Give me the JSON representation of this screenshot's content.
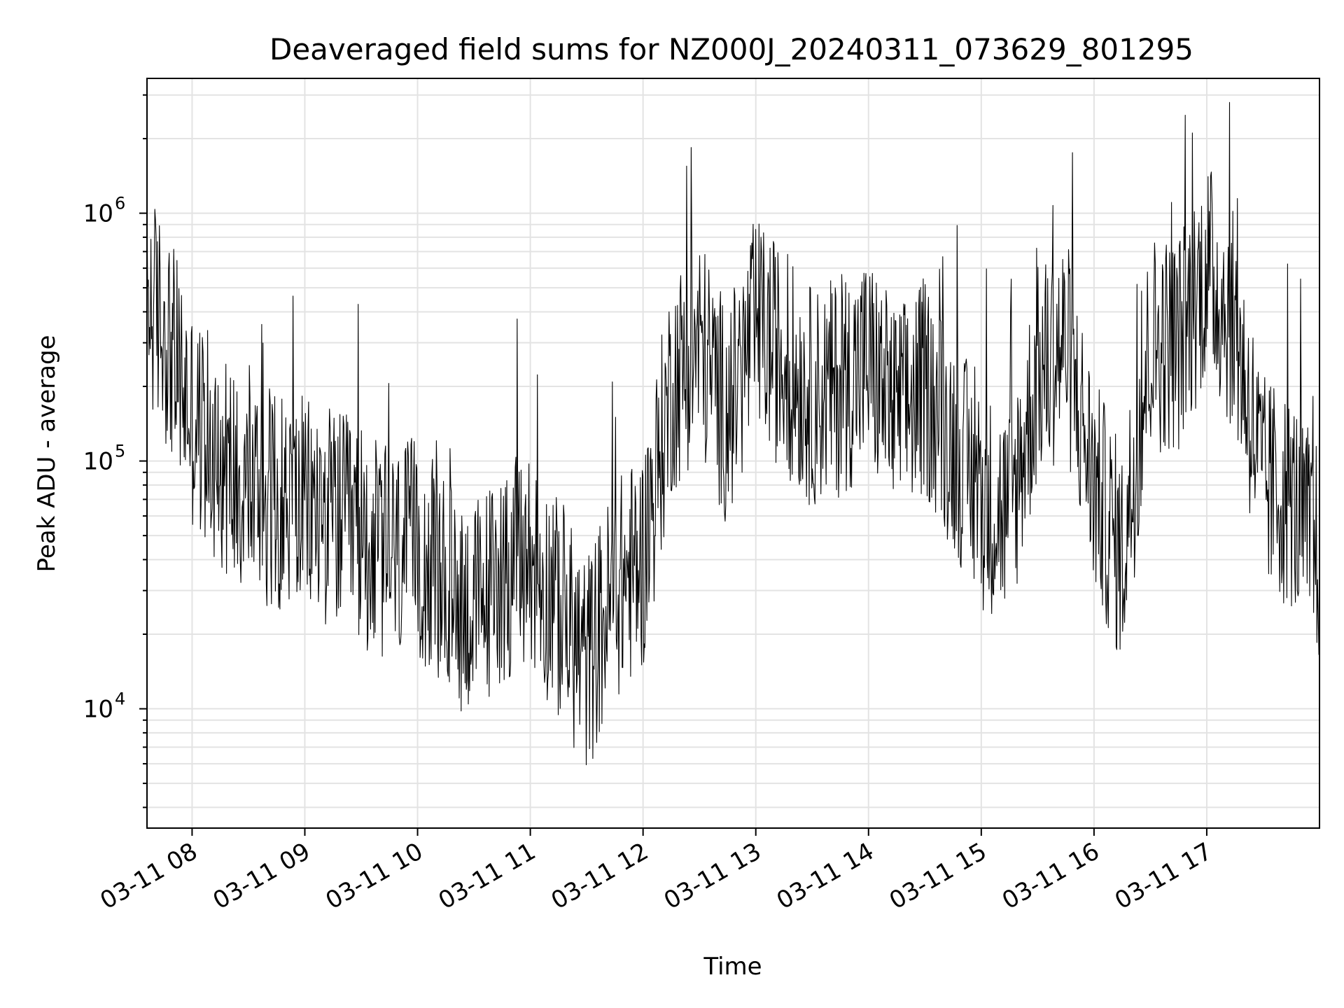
{
  "chart_data": {
    "type": "line",
    "title": "Deaveraged field sums for NZ000J_20240311_073629_801295",
    "xlabel": "Time",
    "ylabel": "Peak ADU - average",
    "yscale": "log",
    "ylim": [
      3300,
      3500000
    ],
    "xlim": [
      "2024-03-11 07:36",
      "2024-03-11 18:00"
    ],
    "grid": true,
    "x_ticks": [
      "03-11 08",
      "03-11 09",
      "03-11 10",
      "03-11 11",
      "03-11 12",
      "03-11 13",
      "03-11 14",
      "03-11 15",
      "03-11 16",
      "03-11 17"
    ],
    "y_ticks": [
      {
        "base": "10",
        "exp": "4",
        "value": 10000
      },
      {
        "base": "10",
        "exp": "5",
        "value": 100000
      },
      {
        "base": "10",
        "exp": "6",
        "value": 1000000
      }
    ],
    "series": [
      {
        "color": "#000000",
        "x": [
          "2024-03-11 07:36",
          "2024-03-11 07:45",
          "2024-03-11 08:00",
          "2024-03-11 08:15",
          "2024-03-11 08:30",
          "2024-03-11 08:45",
          "2024-03-11 09:00",
          "2024-03-11 09:15",
          "2024-03-11 09:30",
          "2024-03-11 09:45",
          "2024-03-11 10:00",
          "2024-03-11 10:15",
          "2024-03-11 10:30",
          "2024-03-11 10:45",
          "2024-03-11 11:00",
          "2024-03-11 11:15",
          "2024-03-11 11:30",
          "2024-03-11 11:45",
          "2024-03-11 12:00",
          "2024-03-11 12:15",
          "2024-03-11 12:30",
          "2024-03-11 12:45",
          "2024-03-11 13:00",
          "2024-03-11 13:15",
          "2024-03-11 13:30",
          "2024-03-11 13:45",
          "2024-03-11 14:00",
          "2024-03-11 14:15",
          "2024-03-11 14:30",
          "2024-03-11 14:45",
          "2024-03-11 15:00",
          "2024-03-11 15:15",
          "2024-03-11 15:30",
          "2024-03-11 15:45",
          "2024-03-11 16:00",
          "2024-03-11 16:15",
          "2024-03-11 16:30",
          "2024-03-11 16:45",
          "2024-03-11 17:00",
          "2024-03-11 17:15",
          "2024-03-11 17:30",
          "2024-03-11 17:45",
          "2024-03-11 18:00"
        ],
        "values": [
          450000,
          350000,
          150000,
          100000,
          80000,
          70000,
          65000,
          60000,
          50000,
          40000,
          45000,
          30000,
          25000,
          35000,
          40000,
          25000,
          15000,
          30000,
          40000,
          200000,
          300000,
          150000,
          350000,
          250000,
          180000,
          200000,
          250000,
          150000,
          200000,
          120000,
          70000,
          60000,
          220000,
          300000,
          80000,
          40000,
          300000,
          300000,
          600000,
          350000,
          80000,
          70000,
          40000
        ]
      }
    ]
  }
}
